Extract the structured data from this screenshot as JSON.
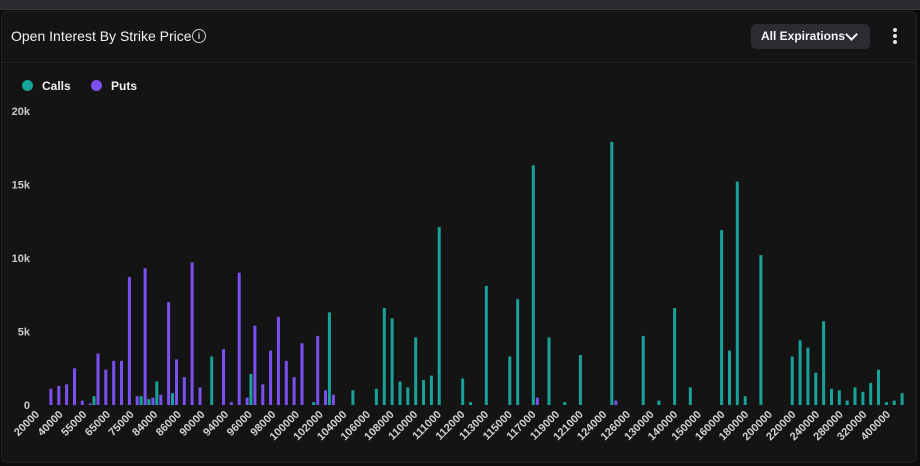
{
  "header": {
    "title": "Open Interest By Strike Price",
    "info_icon": "info-icon",
    "dropdown_label": "All Expirations",
    "menu_icon": "kebab-menu-icon"
  },
  "legend": [
    {
      "label": "Calls",
      "color": "#17a397"
    },
    {
      "label": "Puts",
      "color": "#7b4ff0"
    }
  ],
  "chart_data": {
    "type": "bar",
    "title": "Open Interest By Strike Price",
    "xlabel": "",
    "ylabel": "",
    "ylim": [
      0,
      20000
    ],
    "yticks": [
      0,
      5000,
      10000,
      15000,
      20000
    ],
    "ytick_labels": [
      "0",
      "5k",
      "10k",
      "15k",
      "20k"
    ],
    "grid": false,
    "legend_position": "top-left",
    "tick_labels": [
      "20000",
      "40000",
      "55000",
      "65000",
      "75000",
      "84000",
      "86000",
      "90000",
      "94000",
      "96000",
      "98000",
      "100000",
      "102000",
      "104000",
      "106000",
      "108000",
      "110000",
      "111000",
      "112000",
      "113000",
      "115000",
      "117000",
      "119000",
      "121000",
      "124000",
      "126000",
      "130000",
      "140000",
      "150000",
      "160000",
      "180000",
      "200000",
      "220000",
      "240000",
      "280000",
      "320000",
      "400000"
    ],
    "series": [
      {
        "name": "Calls",
        "color": "#17a397",
        "values": [
          0,
          0,
          0,
          0,
          0,
          0,
          600,
          0,
          0,
          0,
          0,
          0,
          600,
          400,
          1600,
          0,
          800,
          0,
          0,
          0,
          0,
          3300,
          0,
          0,
          0,
          0,
          2100,
          0,
          0,
          0,
          0,
          0,
          0,
          0,
          200,
          0,
          6300,
          0,
          0,
          1000,
          0,
          0,
          1100,
          6600,
          5900,
          1600,
          1200,
          4600,
          1700,
          2000,
          12100,
          0,
          0,
          1800,
          200,
          0,
          8100,
          0,
          0,
          3300,
          7200,
          0,
          16300,
          0,
          4600,
          0,
          200,
          0,
          3400,
          0,
          0,
          0,
          17900,
          0,
          0,
          0,
          4700,
          0,
          300,
          0,
          6600,
          0,
          1200,
          0,
          0,
          0,
          11900,
          3700,
          15200,
          600,
          0,
          10200,
          0,
          0,
          0,
          3300,
          4400,
          3900,
          2200,
          5700,
          1100,
          1000,
          300,
          1200,
          900,
          1500,
          2400,
          200,
          300,
          800
        ]
      },
      {
        "name": "Puts",
        "color": "#7b4ff0",
        "values": [
          1100,
          1300,
          1400,
          2500,
          300,
          100,
          3500,
          2400,
          3000,
          3000,
          8700,
          600,
          9300,
          500,
          700,
          7000,
          3100,
          1900,
          9700,
          1200,
          0,
          0,
          3800,
          200,
          9000,
          500,
          5400,
          1400,
          3700,
          6000,
          3000,
          1900,
          4200,
          0,
          4700,
          1000,
          700,
          0,
          0,
          0,
          0,
          0,
          0,
          0,
          0,
          0,
          0,
          0,
          0,
          0,
          0,
          0,
          0,
          0,
          0,
          0,
          0,
          0,
          0,
          0,
          0,
          0,
          500,
          0,
          0,
          0,
          0,
          0,
          0,
          0,
          0,
          0,
          300,
          0,
          0,
          0,
          0,
          0,
          0,
          0,
          0,
          0,
          0,
          0,
          0,
          0,
          0,
          0,
          0,
          0,
          0,
          0,
          0,
          0,
          0,
          0,
          0,
          0,
          0,
          0,
          0,
          0,
          0,
          0,
          0,
          0,
          0,
          0,
          0,
          0
        ]
      }
    ]
  }
}
